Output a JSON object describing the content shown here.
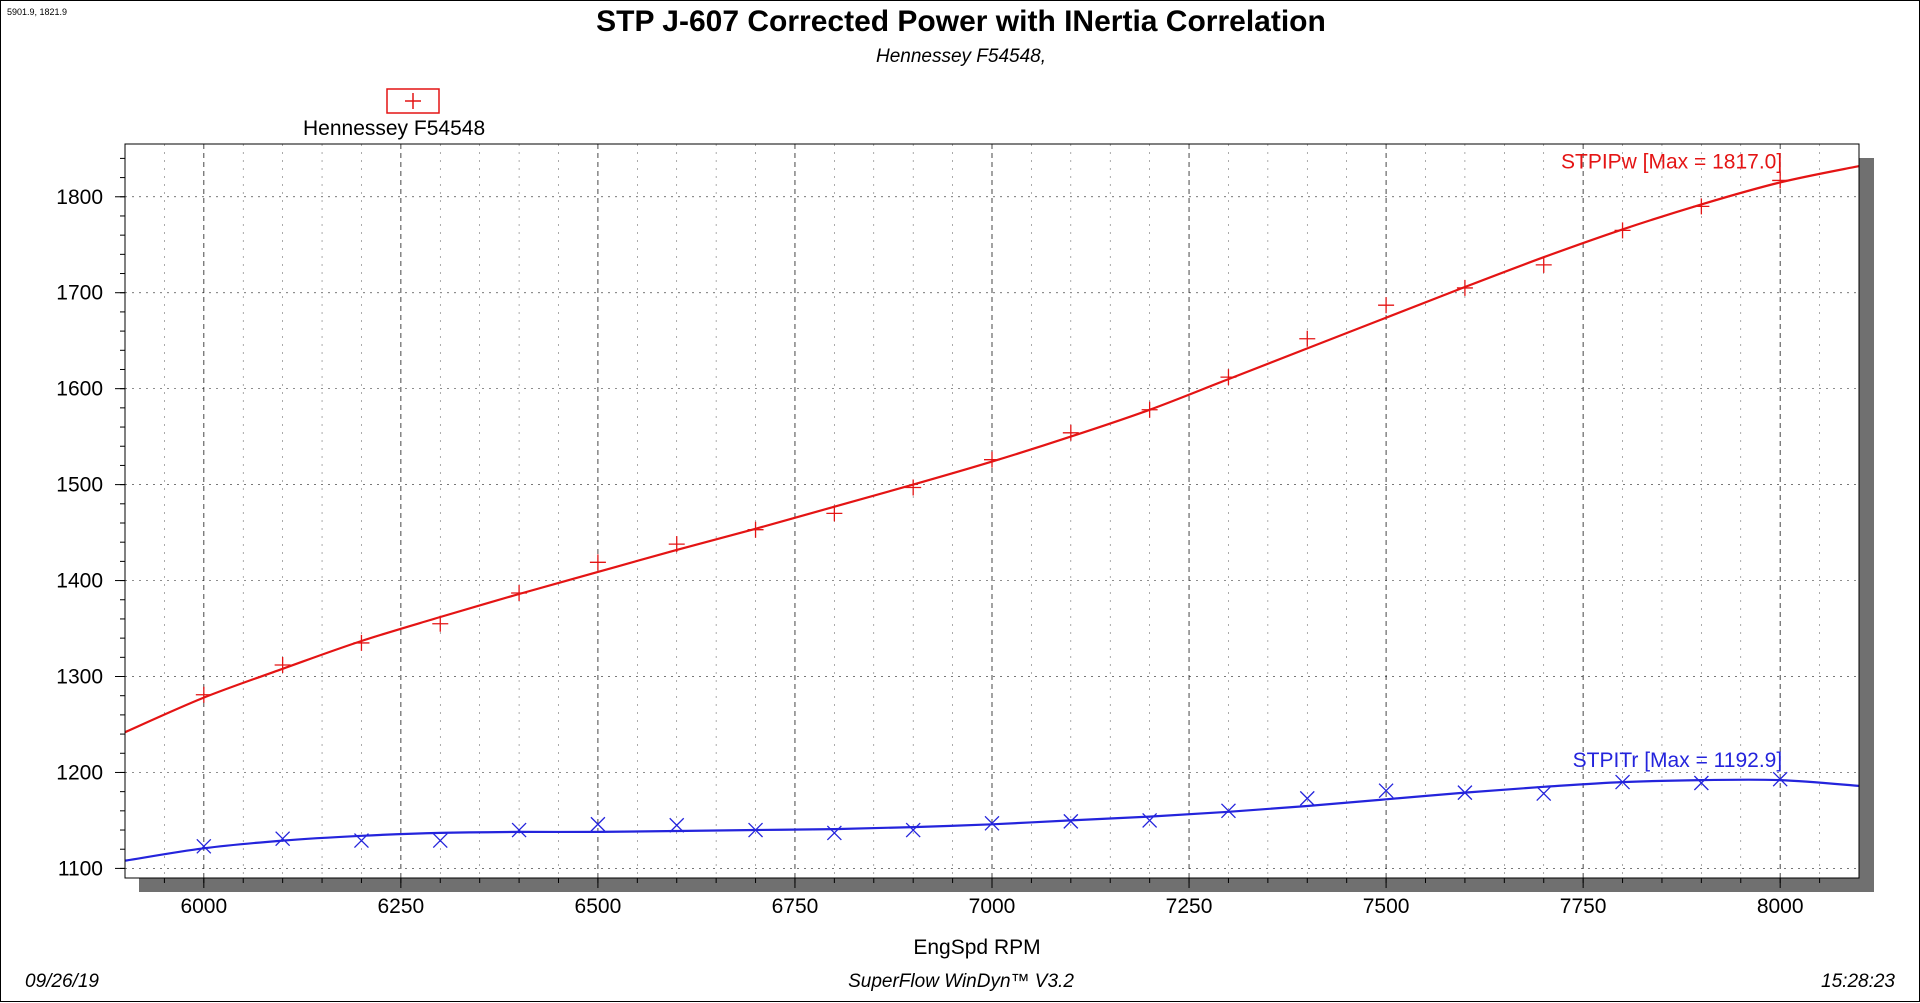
{
  "header": {
    "coordinates": "5901.9, 1821.9",
    "title": "STP J-607 Corrected Power with INertia Correlation",
    "subtitle": "Hennessey F54548,"
  },
  "footer": {
    "date": "09/26/19",
    "software": "SuperFlow WinDyn™ V3.2",
    "time": "15:28:23"
  },
  "colors": {
    "power": "#e41414",
    "torque": "#2424dc",
    "grid": "#000000",
    "shadow": "#707070"
  },
  "chart_data": {
    "type": "line",
    "title": "STP J-607 Corrected Power with INertia Correlation",
    "subtitle": "Hennessey F54548,",
    "xlabel": "EngSpd RPM",
    "ylabel": "",
    "xlim": [
      5900,
      8100
    ],
    "ylim": [
      1090,
      1855
    ],
    "xticks": [
      6000,
      6250,
      6500,
      6750,
      7000,
      7250,
      7500,
      7750,
      8000
    ],
    "yticks": [
      1100,
      1200,
      1300,
      1400,
      1500,
      1600,
      1700,
      1800
    ],
    "grid": true,
    "legend": {
      "position": "top-left",
      "entries": [
        "Hennessey F54548"
      ]
    },
    "series": [
      {
        "name": "STPIPw",
        "label": "STPIPw [Max = 1817.0]",
        "color": "#e41414",
        "marker": "+",
        "curve_x": [
          5900,
          6000,
          6100,
          6200,
          6300,
          6400,
          6500,
          6600,
          6700,
          6800,
          6900,
          7000,
          7100,
          7200,
          7300,
          7400,
          7500,
          7600,
          7700,
          7800,
          7900,
          8000,
          8100
        ],
        "curve_y": [
          1242,
          1278,
          1308,
          1337,
          1362,
          1386,
          1409,
          1432,
          1454,
          1477,
          1500,
          1524,
          1550,
          1578,
          1610,
          1642,
          1674,
          1706,
          1737,
          1766,
          1792,
          1815,
          1832
        ],
        "points_x": [
          6000,
          6100,
          6200,
          6300,
          6400,
          6500,
          6600,
          6700,
          6800,
          6900,
          7000,
          7100,
          7200,
          7300,
          7400,
          7500,
          7600,
          7700,
          7800,
          7900,
          8000
        ],
        "points_y": [
          1281,
          1312,
          1335,
          1355,
          1387,
          1419,
          1438,
          1453,
          1470,
          1497,
          1526,
          1554,
          1578,
          1612,
          1652,
          1687,
          1705,
          1729,
          1765,
          1790,
          1817
        ]
      },
      {
        "name": "STPITr",
        "label": "STPITr [Max = 1192.9]",
        "color": "#2424dc",
        "marker": "x",
        "curve_x": [
          5900,
          6000,
          6100,
          6200,
          6300,
          6400,
          6500,
          6600,
          6700,
          6800,
          6900,
          7000,
          7100,
          7200,
          7300,
          7400,
          7500,
          7600,
          7700,
          7800,
          7900,
          8000,
          8100
        ],
        "curve_y": [
          1108,
          1121,
          1129,
          1134,
          1137,
          1138,
          1138,
          1139,
          1140,
          1141,
          1143,
          1146,
          1150,
          1154,
          1159,
          1165,
          1172,
          1179,
          1185,
          1190,
          1192,
          1192,
          1186
        ],
        "points_x": [
          6000,
          6100,
          6200,
          6300,
          6400,
          6500,
          6600,
          6700,
          6800,
          6900,
          7000,
          7100,
          7200,
          7300,
          7400,
          7500,
          7600,
          7700,
          7800,
          7900,
          8000
        ],
        "points_y": [
          1123,
          1131,
          1129,
          1129,
          1140,
          1146,
          1145,
          1140,
          1137,
          1140,
          1147,
          1149,
          1150,
          1160,
          1173,
          1181,
          1179,
          1178,
          1190,
          1189,
          1193
        ]
      }
    ]
  }
}
